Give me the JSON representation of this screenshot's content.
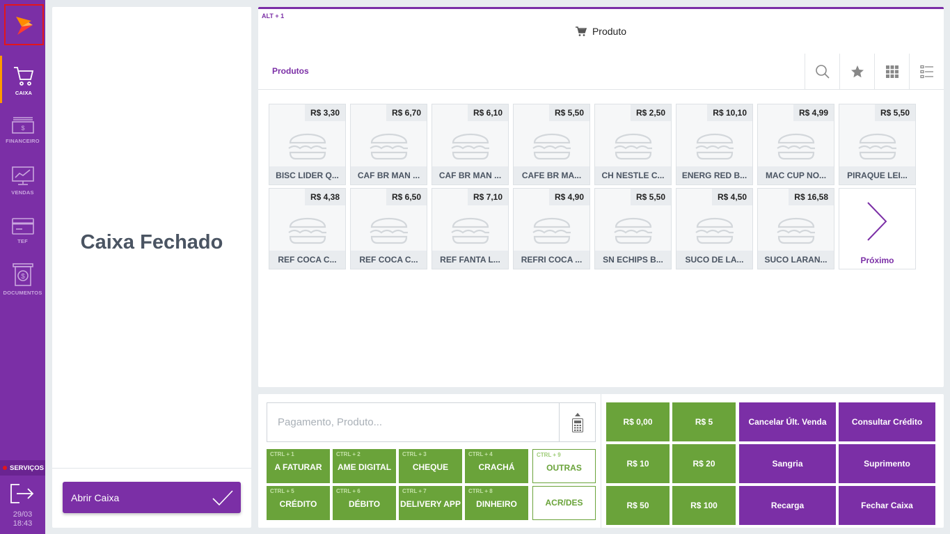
{
  "sidebar": {
    "items": [
      {
        "label": "CAIXA",
        "icon": "cart-icon"
      },
      {
        "label": "FINANCEIRO",
        "icon": "money-icon"
      },
      {
        "label": "VENDAS",
        "icon": "chart-monitor-icon"
      },
      {
        "label": "TEF",
        "icon": "card-icon"
      },
      {
        "label": "DOCUMENTOS",
        "icon": "document-dollar-icon"
      }
    ],
    "servicos_label": "SERVIÇOS",
    "date": "29/03",
    "time": "18:43"
  },
  "left_panel": {
    "status": "Caixa Fechado",
    "open_button": "Abrir Caixa"
  },
  "product_panel": {
    "shortcut": "ALT + 1",
    "title": "Produto",
    "tab": "Produtos",
    "products": [
      {
        "price": "R$ 3,30",
        "name": "BISC LIDER Q..."
      },
      {
        "price": "R$ 6,70",
        "name": "CAF BR MAN ..."
      },
      {
        "price": "R$ 6,10",
        "name": "CAF BR MAN ..."
      },
      {
        "price": "R$ 5,50",
        "name": "CAFE BR MA..."
      },
      {
        "price": "R$ 2,50",
        "name": "CH NESTLE C..."
      },
      {
        "price": "R$ 10,10",
        "name": "ENERG RED B..."
      },
      {
        "price": "R$ 4,99",
        "name": "MAC CUP NO..."
      },
      {
        "price": "R$ 5,50",
        "name": "PIRAQUE LEI..."
      },
      {
        "price": "R$ 4,38",
        "name": "REF COCA C..."
      },
      {
        "price": "R$ 6,50",
        "name": "REF COCA C..."
      },
      {
        "price": "R$ 7,10",
        "name": "REF FANTA L..."
      },
      {
        "price": "R$ 4,90",
        "name": "REFRI COCA ..."
      },
      {
        "price": "R$ 5,50",
        "name": "SN ECHIPS B..."
      },
      {
        "price": "R$ 4,50",
        "name": "SUCO DE LA..."
      },
      {
        "price": "R$ 16,58",
        "name": "SUCO LARAN..."
      }
    ],
    "next_label": "Próximo"
  },
  "payment": {
    "placeholder": "Pagamento, Produto...",
    "methods": [
      {
        "shortcut": "CTRL + 1",
        "label": "A FATURAR"
      },
      {
        "shortcut": "CTRL + 2",
        "label": "AME DIGITAL"
      },
      {
        "shortcut": "CTRL + 3",
        "label": "CHEQUE"
      },
      {
        "shortcut": "CTRL + 4",
        "label": "CRACHÁ"
      },
      {
        "shortcut": "CTRL + 9",
        "label": "OUTRAS"
      },
      {
        "shortcut": "CTRL + 5",
        "label": "CRÉDITO"
      },
      {
        "shortcut": "CTRL + 6",
        "label": "DÉBITO"
      },
      {
        "shortcut": "CTRL + 7",
        "label": "DELIVERY APP"
      },
      {
        "shortcut": "CTRL + 8",
        "label": "DINHEIRO"
      },
      {
        "shortcut": "",
        "label": "ACR/DES"
      }
    ],
    "quick_values": [
      "R$ 0,00",
      "R$ 5",
      "R$ 10",
      "R$ 20",
      "R$ 50",
      "R$ 100"
    ],
    "actions": [
      "Cancelar Últ. Venda",
      "Consultar Crédito",
      "Sangria",
      "Suprimento",
      "Recarga",
      "Fechar Caixa"
    ]
  },
  "colors": {
    "brand_purple": "#7b2fa6",
    "green": "#6aa33a",
    "accent_orange": "#ff9a00",
    "annotation_red": "#e3161b"
  }
}
